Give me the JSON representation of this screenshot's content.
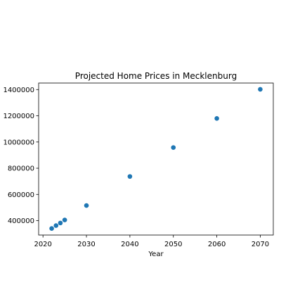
{
  "chart_data": {
    "type": "scatter",
    "title": "Projected Home Prices in Mecklenburg",
    "xlabel": "Year",
    "ylabel": "",
    "xlim": [
      2019,
      2073
    ],
    "ylim": [
      290000,
      1450000
    ],
    "x_ticks": [
      2020,
      2030,
      2040,
      2050,
      2060,
      2070
    ],
    "y_ticks": [
      400000,
      600000,
      800000,
      1000000,
      1200000,
      1400000
    ],
    "grid": false,
    "series": [
      {
        "color": "#1f77b4",
        "points": [
          {
            "x": 2022,
            "y": 340000
          },
          {
            "x": 2023,
            "y": 362000
          },
          {
            "x": 2024,
            "y": 382000
          },
          {
            "x": 2025,
            "y": 405000
          },
          {
            "x": 2030,
            "y": 515000
          },
          {
            "x": 2040,
            "y": 737000
          },
          {
            "x": 2050,
            "y": 958000
          },
          {
            "x": 2060,
            "y": 1180000
          },
          {
            "x": 2070,
            "y": 1402000
          }
        ]
      }
    ]
  }
}
